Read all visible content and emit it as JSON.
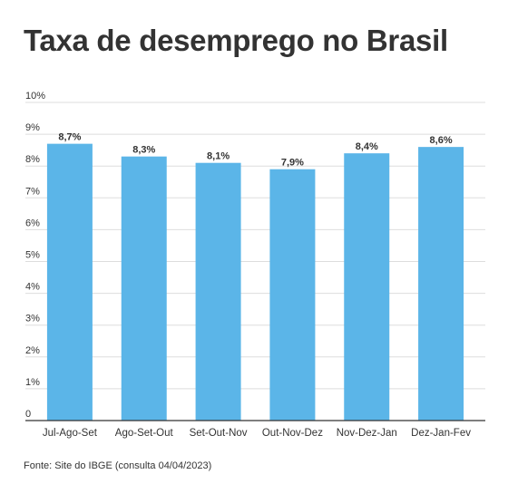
{
  "title": "Taxa de desemprego no Brasil",
  "source": "Fonte: Site do IBGE (consulta 04/04/2023)",
  "colors": {
    "bar": "#5bb5e8",
    "grid": "#dddddd",
    "axis": "#333333",
    "text": "#333333"
  },
  "chart_data": {
    "type": "bar",
    "title": "Taxa de desemprego no Brasil",
    "xlabel": "",
    "ylabel": "",
    "categories": [
      "Jul-Ago-Set",
      "Ago-Set-Out",
      "Set-Out-Nov",
      "Out-Nov-Dez",
      "Nov-Dez-Jan",
      "Dez-Jan-Fev"
    ],
    "values": [
      8.7,
      8.3,
      8.1,
      7.9,
      8.4,
      8.6
    ],
    "data_labels": [
      "8,7%",
      "8,3%",
      "8,1%",
      "7,9%",
      "8,4%",
      "8,6%"
    ],
    "ylim": [
      0,
      10
    ],
    "yticks": [
      0,
      1,
      2,
      3,
      4,
      5,
      6,
      7,
      8,
      9,
      10
    ],
    "ytick_labels": [
      "0",
      "1%",
      "2%",
      "3%",
      "4%",
      "5%",
      "6%",
      "7%",
      "8%",
      "9%",
      "10%"
    ],
    "grid": true,
    "legend": "none"
  }
}
